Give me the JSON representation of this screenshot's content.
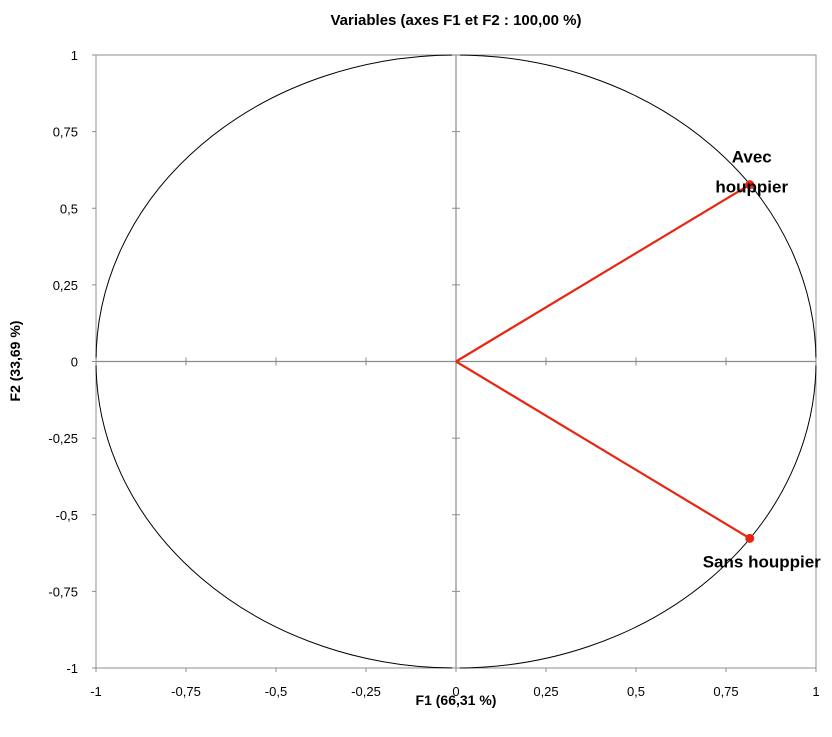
{
  "chart_data": {
    "type": "scatter",
    "title": "Variables (axes F1 et F2 : 100,00 %)",
    "xlabel": "F1 (66,31 %)",
    "ylabel": "F2 (33,69 %)",
    "xlim": [
      -1,
      1
    ],
    "ylim": [
      -1,
      1
    ],
    "x_ticks": [
      -1,
      -0.75,
      -0.5,
      -0.25,
      0,
      0.25,
      0.5,
      0.75,
      1
    ],
    "x_tick_labels": [
      "-1",
      "-0,75",
      "-0,5",
      "-0,25",
      "0",
      "0,25",
      "0,5",
      "0,75",
      "1"
    ],
    "y_ticks": [
      1,
      0.75,
      0.5,
      0.25,
      0,
      -0.25,
      -0.5,
      -0.75,
      -1
    ],
    "y_tick_labels": [
      "1",
      "0,75",
      "0,5",
      "0,25",
      "0",
      "-0,25",
      "-0,5",
      "-0,75",
      "-1"
    ],
    "circle": {
      "radius": 1
    },
    "vectors": [
      {
        "label_lines": [
          "Avec",
          "houppier"
        ],
        "x": 0.816,
        "y": 0.577
      },
      {
        "label_lines": [
          "Sans houppier"
        ],
        "x": 0.816,
        "y": -0.577
      }
    ],
    "colors": {
      "vector": "#e8260f",
      "axis": "#8c8c8c",
      "circle": "#000000"
    }
  }
}
